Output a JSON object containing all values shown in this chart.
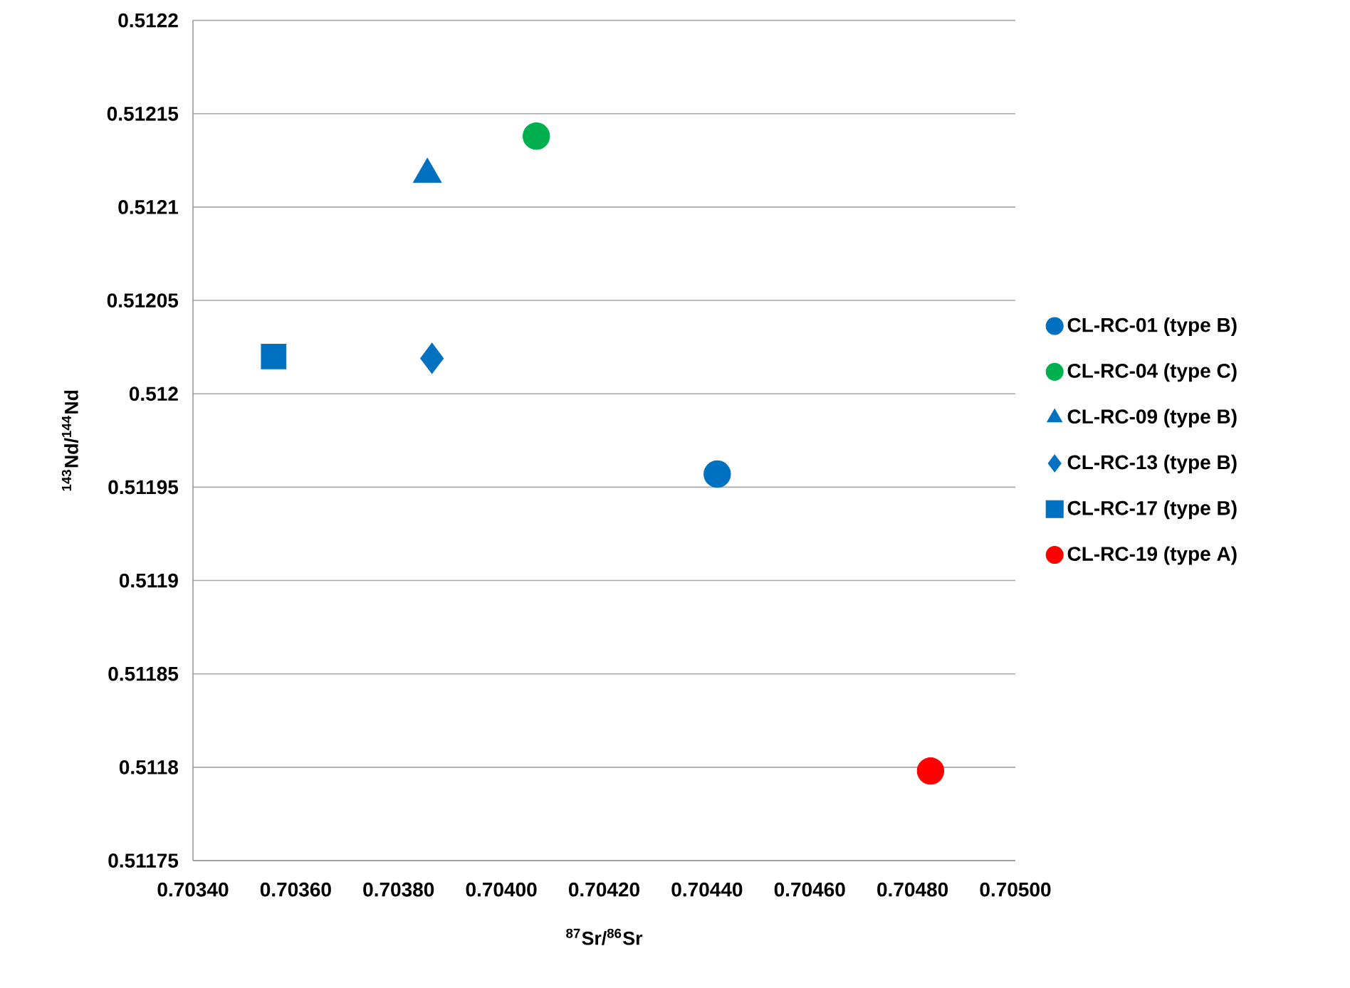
{
  "chart_data": {
    "type": "scatter",
    "xlabel": "$^{87}$Sr/$^{86}$Sr",
    "ylabel": "$^{143}$Nd/$^{144}$Nd",
    "xlim": [
      0.7034,
      0.705
    ],
    "xticks": [
      {
        "value": 0.7034,
        "label": "0.70340"
      },
      {
        "value": 0.7036,
        "label": "0.70360"
      },
      {
        "value": 0.7038,
        "label": "0.70380"
      },
      {
        "value": 0.704,
        "label": "0.70400"
      },
      {
        "value": 0.7042,
        "label": "0.70420"
      },
      {
        "value": 0.7044,
        "label": "0.70440"
      },
      {
        "value": 0.7046,
        "label": "0.70460"
      },
      {
        "value": 0.7048,
        "label": "0.70480"
      },
      {
        "value": 0.705,
        "label": "0.70500"
      }
    ],
    "ylim": [
      0.51175,
      0.5122
    ],
    "yticks": [
      0.51175,
      0.5118,
      0.51185,
      0.5119,
      0.51195,
      0.512,
      0.51205,
      0.5121,
      0.51215,
      0.5122
    ],
    "grid": "y",
    "legend": "right",
    "series": [
      {
        "name": "CL-RC-01 (type B)",
        "color": "#0070c0",
        "marker": "circle",
        "x": [
          0.70442
        ],
        "values": [
          0.511957
        ]
      },
      {
        "name": "CL-RC-04 (type C)",
        "color": "#00b050",
        "marker": "circle",
        "x": [
          0.704068
        ],
        "values": [
          0.512138
        ]
      },
      {
        "name": "CL-RC-09 (type B)",
        "color": "#0070c0",
        "marker": "triangle",
        "x": [
          0.703856
        ],
        "values": [
          0.5121175
        ]
      },
      {
        "name": "CL-RC-13 (type B)",
        "color": "#0070c0",
        "marker": "diamond",
        "x": [
          0.703865
        ],
        "values": [
          0.512019
        ]
      },
      {
        "name": "CL-RC-17 (type B)",
        "color": "#0070c0",
        "marker": "square",
        "x": [
          0.703557
        ],
        "values": [
          0.51202
        ]
      },
      {
        "name": "CL-RC-19 (type A)",
        "color": "#ff0000",
        "marker": "circle",
        "x": [
          0.704835
        ],
        "values": [
          0.511798
        ]
      }
    ]
  }
}
